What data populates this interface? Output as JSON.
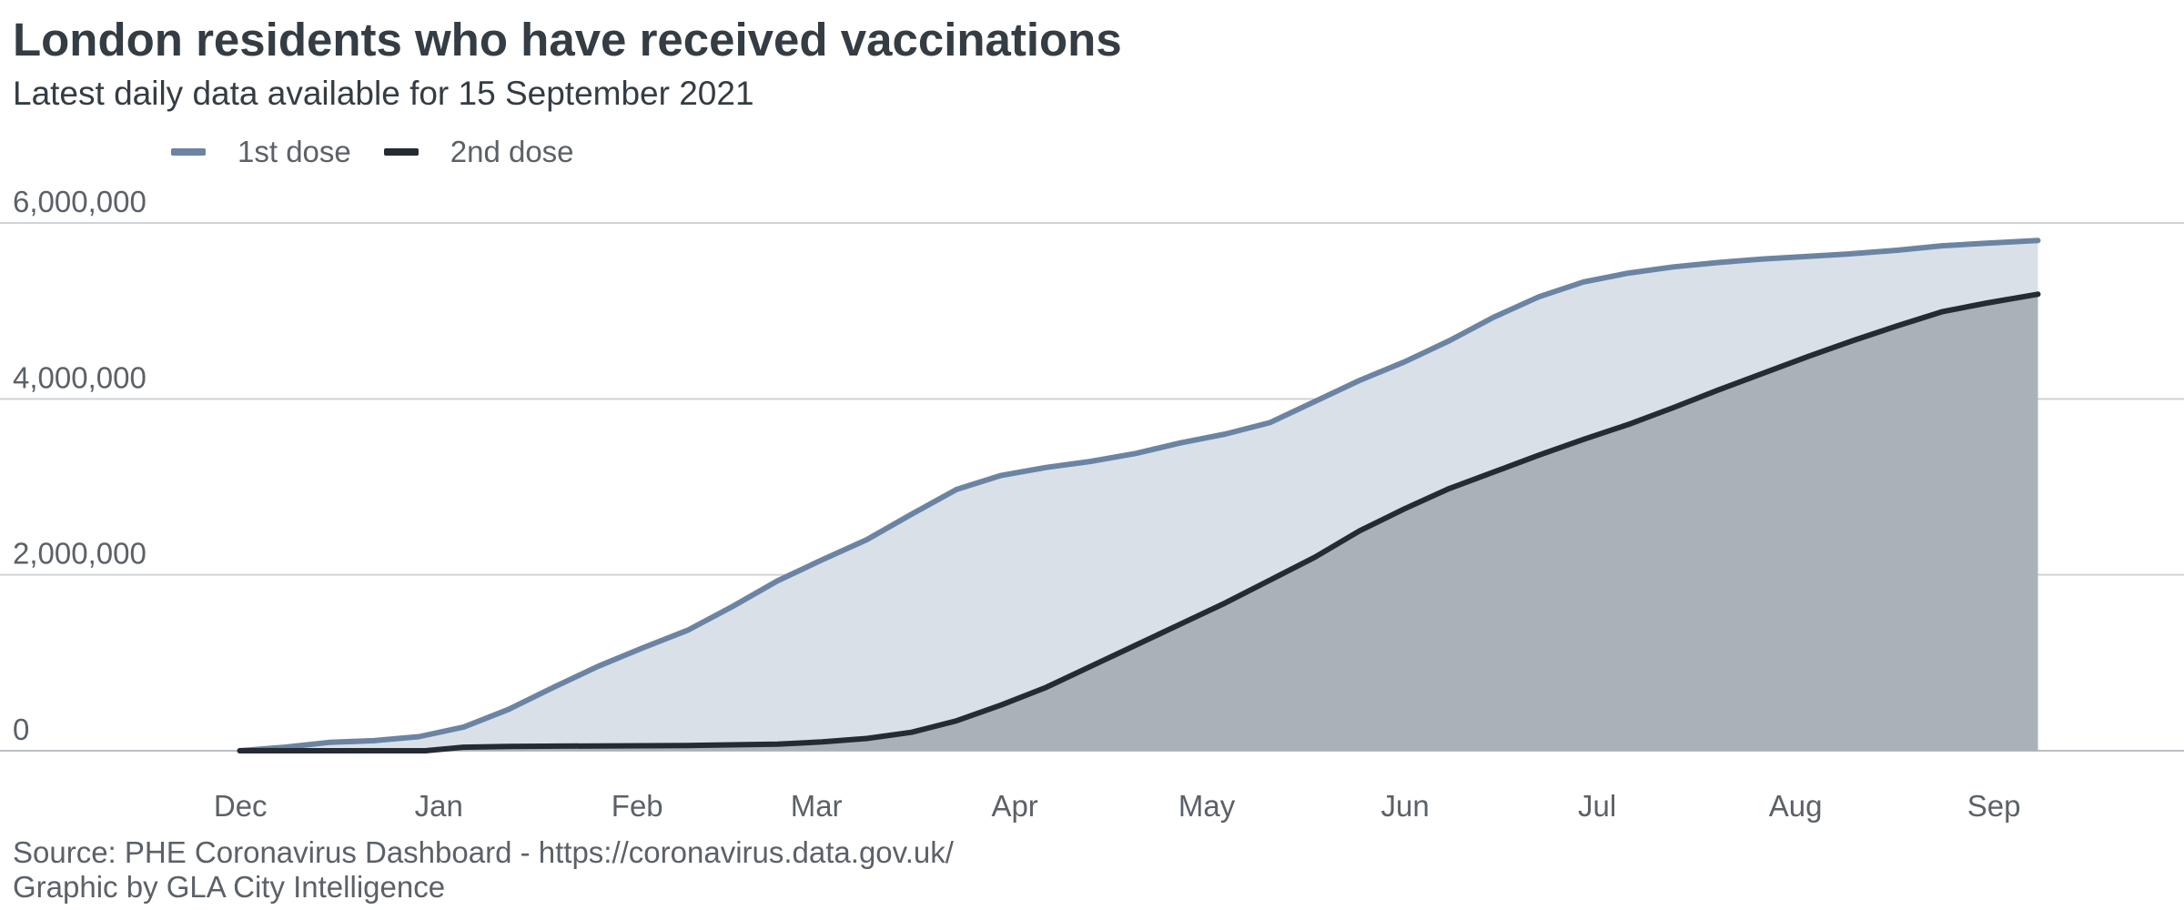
{
  "header": {
    "title": "London residents who have received vaccinations",
    "subtitle": "Latest daily data available for 15 September 2021"
  },
  "footer": {
    "source": "Source: PHE Coronavirus Dashboard - https://coronavirus.data.gov.uk/",
    "credit": "Graphic by GLA City Intelligence"
  },
  "colors": {
    "first_dose_line": "#6b84a3",
    "first_dose_area": "#d9e0e8",
    "second_dose_line": "#252b33",
    "second_dose_area": "#aab1b9",
    "gridline": "#cfd3d7",
    "baseline": "#b9bec3"
  },
  "chart_data": {
    "type": "area",
    "title": "London residents who have received vaccinations",
    "subtitle": "Latest daily data available for 15 September 2021",
    "xlabel": "",
    "ylabel": "",
    "x_type": "date",
    "x_ticks": [
      {
        "date": "2020-12-01",
        "label": "Dec"
      },
      {
        "date": "2021-01-01",
        "label": "Jan"
      },
      {
        "date": "2021-02-01",
        "label": "Feb"
      },
      {
        "date": "2021-03-01",
        "label": "Mar"
      },
      {
        "date": "2021-04-01",
        "label": "Apr"
      },
      {
        "date": "2021-05-01",
        "label": "May"
      },
      {
        "date": "2021-06-01",
        "label": "Jun"
      },
      {
        "date": "2021-07-01",
        "label": "Jul"
      },
      {
        "date": "2021-08-01",
        "label": "Aug"
      },
      {
        "date": "2021-09-01",
        "label": "Sep"
      }
    ],
    "xlim": [
      "2020-11-24",
      "2021-09-30"
    ],
    "ylim": [
      0,
      6000000
    ],
    "y_ticks": [
      {
        "value": 0,
        "label": "0"
      },
      {
        "value": 2000000,
        "label": "2,000,000"
      },
      {
        "value": 4000000,
        "label": "4,000,000"
      },
      {
        "value": 6000000,
        "label": "6,000,000"
      }
    ],
    "grid": true,
    "legend_position": "top-left",
    "series": [
      {
        "name": "1st dose",
        "points": [
          [
            "2020-12-08",
            0
          ],
          [
            "2020-12-15",
            40000
          ],
          [
            "2020-12-22",
            95000
          ],
          [
            "2020-12-29",
            115000
          ],
          [
            "2021-01-05",
            160000
          ],
          [
            "2021-01-12",
            270000
          ],
          [
            "2021-01-19",
            470000
          ],
          [
            "2021-01-26",
            720000
          ],
          [
            "2021-02-02",
            960000
          ],
          [
            "2021-02-09",
            1170000
          ],
          [
            "2021-02-16",
            1370000
          ],
          [
            "2021-02-23",
            1640000
          ],
          [
            "2021-03-02",
            1930000
          ],
          [
            "2021-03-09",
            2170000
          ],
          [
            "2021-03-16",
            2400000
          ],
          [
            "2021-03-23",
            2690000
          ],
          [
            "2021-03-30",
            2970000
          ],
          [
            "2021-04-06",
            3130000
          ],
          [
            "2021-04-13",
            3220000
          ],
          [
            "2021-04-20",
            3290000
          ],
          [
            "2021-04-27",
            3380000
          ],
          [
            "2021-05-04",
            3500000
          ],
          [
            "2021-05-11",
            3600000
          ],
          [
            "2021-05-18",
            3730000
          ],
          [
            "2021-05-25",
            3970000
          ],
          [
            "2021-06-01",
            4210000
          ],
          [
            "2021-06-08",
            4420000
          ],
          [
            "2021-06-15",
            4660000
          ],
          [
            "2021-06-22",
            4930000
          ],
          [
            "2021-06-29",
            5160000
          ],
          [
            "2021-07-06",
            5330000
          ],
          [
            "2021-07-13",
            5430000
          ],
          [
            "2021-07-20",
            5500000
          ],
          [
            "2021-07-27",
            5550000
          ],
          [
            "2021-08-03",
            5590000
          ],
          [
            "2021-08-10",
            5620000
          ],
          [
            "2021-08-17",
            5650000
          ],
          [
            "2021-08-24",
            5690000
          ],
          [
            "2021-08-31",
            5740000
          ],
          [
            "2021-09-07",
            5770000
          ],
          [
            "2021-09-15",
            5800000
          ]
        ]
      },
      {
        "name": "2nd dose",
        "points": [
          [
            "2020-12-08",
            0
          ],
          [
            "2020-12-22",
            0
          ],
          [
            "2021-01-06",
            0
          ],
          [
            "2021-01-12",
            40000
          ],
          [
            "2021-01-19",
            50000
          ],
          [
            "2021-02-02",
            55000
          ],
          [
            "2021-02-16",
            60000
          ],
          [
            "2021-03-02",
            75000
          ],
          [
            "2021-03-09",
            100000
          ],
          [
            "2021-03-16",
            140000
          ],
          [
            "2021-03-23",
            210000
          ],
          [
            "2021-03-30",
            340000
          ],
          [
            "2021-04-06",
            520000
          ],
          [
            "2021-04-13",
            720000
          ],
          [
            "2021-04-20",
            960000
          ],
          [
            "2021-04-27",
            1200000
          ],
          [
            "2021-05-04",
            1440000
          ],
          [
            "2021-05-11",
            1680000
          ],
          [
            "2021-05-18",
            1940000
          ],
          [
            "2021-05-25",
            2200000
          ],
          [
            "2021-06-01",
            2500000
          ],
          [
            "2021-06-08",
            2750000
          ],
          [
            "2021-06-15",
            2980000
          ],
          [
            "2021-06-22",
            3170000
          ],
          [
            "2021-06-29",
            3360000
          ],
          [
            "2021-07-06",
            3540000
          ],
          [
            "2021-07-13",
            3710000
          ],
          [
            "2021-07-20",
            3900000
          ],
          [
            "2021-07-27",
            4100000
          ],
          [
            "2021-08-03",
            4290000
          ],
          [
            "2021-08-10",
            4480000
          ],
          [
            "2021-08-17",
            4660000
          ],
          [
            "2021-08-24",
            4830000
          ],
          [
            "2021-08-31",
            4990000
          ],
          [
            "2021-09-07",
            5090000
          ],
          [
            "2021-09-15",
            5190000
          ]
        ]
      }
    ]
  }
}
